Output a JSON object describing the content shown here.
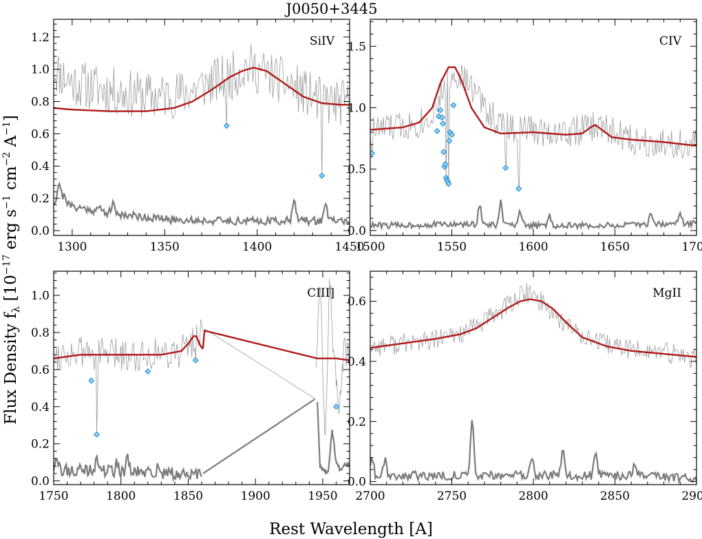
{
  "figure": {
    "title": "J0050+3445",
    "xlabel": "Rest Wavelength [A]",
    "ylabel": {
      "prefix": "Flux Density f",
      "sub": "λ",
      "unit_open": " [10",
      "exp": "−17",
      "units_a": " erg s",
      "exp_s": "−1",
      "units_b": " cm",
      "exp_cm": "−2",
      "units_c": " A",
      "exp_a": "−1",
      "close": "]"
    }
  },
  "colors": {
    "spectrum": "#9a9a9a",
    "error": "#7a7a7a",
    "model": "#b01818",
    "marker_stroke": "#1f8fd6",
    "marker_fill": "#9fd4f5"
  },
  "chart_data": [
    {
      "type": "line",
      "label": "SiIV",
      "xlim": [
        1290,
        1450
      ],
      "ylim": [
        -0.03,
        1.31
      ],
      "xticks": [
        1300,
        1350,
        1400,
        1450
      ],
      "xtick_labels": [
        "1300",
        "1350",
        "1400",
        "1450"
      ],
      "yticks": [
        0.0,
        0.2,
        0.4,
        0.6,
        0.8,
        1.0,
        1.2
      ],
      "ytick_labels": [
        "0.0",
        "0.2",
        "0.4",
        "0.6",
        "0.8",
        "1.0",
        "1.2"
      ],
      "model": {
        "x": [
          1290,
          1300,
          1320,
          1340,
          1355,
          1365,
          1375,
          1385,
          1392,
          1398,
          1405,
          1415,
          1425,
          1435,
          1445,
          1450
        ],
        "y": [
          0.76,
          0.75,
          0.74,
          0.74,
          0.76,
          0.8,
          0.87,
          0.95,
          0.99,
          1.01,
          0.99,
          0.91,
          0.83,
          0.79,
          0.78,
          0.78
        ]
      },
      "flux": {
        "x": [
          1290,
          1300,
          1315,
          1330,
          1345,
          1360,
          1375,
          1385,
          1395,
          1405,
          1415,
          1425,
          1435,
          1445,
          1450
        ],
        "y": [
          1.0,
          0.92,
          0.88,
          0.85,
          0.83,
          0.85,
          0.92,
          0.95,
          1.02,
          0.97,
          0.92,
          0.86,
          0.8,
          0.79,
          0.78
        ],
        "noise": 0.15,
        "seed": 11,
        "dips": [
          {
            "x": 1383.5,
            "y": 0.65
          },
          {
            "x": 1435,
            "y": 0.34
          }
        ]
      },
      "error": {
        "x": [
          1290,
          1300,
          1320,
          1350,
          1380,
          1410,
          1450
        ],
        "y": [
          0.18,
          0.15,
          0.11,
          0.07,
          0.06,
          0.06,
          0.06
        ],
        "noise": 0.025,
        "seed": 21,
        "bumps": [
          {
            "x": 1293,
            "y": 0.3
          },
          {
            "x": 1296,
            "y": 0.22
          },
          {
            "x": 1315,
            "y": 0.14
          },
          {
            "x": 1322,
            "y": 0.16
          },
          {
            "x": 1420,
            "y": 0.21
          },
          {
            "x": 1437,
            "y": 0.17
          }
        ]
      },
      "markers": {
        "x": [
          1383.5,
          1435
        ],
        "y": [
          0.65,
          0.34
        ]
      }
    },
    {
      "type": "line",
      "label": "CIV",
      "xlim": [
        1500,
        1700
      ],
      "ylim": [
        -0.04,
        1.72
      ],
      "xticks": [
        1500,
        1550,
        1600,
        1650,
        1700
      ],
      "xtick_labels": [
        "1500",
        "1550",
        "1600",
        "1650",
        "1700"
      ],
      "yticks": [
        0.0,
        0.5,
        1.0,
        1.5
      ],
      "ytick_labels": [
        "0.0",
        "0.5",
        "1.0",
        "1.5"
      ],
      "model": {
        "x": [
          1500,
          1520,
          1530,
          1538,
          1543,
          1548,
          1552,
          1556,
          1562,
          1570,
          1580,
          1600,
          1620,
          1630,
          1635,
          1638,
          1642,
          1648,
          1660,
          1680,
          1700
        ],
        "y": [
          0.82,
          0.84,
          0.88,
          1.0,
          1.2,
          1.33,
          1.33,
          1.22,
          1.0,
          0.84,
          0.79,
          0.8,
          0.78,
          0.79,
          0.84,
          0.86,
          0.82,
          0.76,
          0.74,
          0.72,
          0.69
        ]
      },
      "flux": {
        "x": [
          1500,
          1520,
          1535,
          1545,
          1552,
          1560,
          1568,
          1580,
          1600,
          1620,
          1640,
          1660,
          1680,
          1700
        ],
        "y": [
          0.82,
          0.85,
          0.9,
          1.15,
          1.3,
          1.2,
          1.05,
          0.85,
          0.82,
          0.8,
          0.85,
          0.74,
          0.72,
          0.69
        ],
        "noise": 0.13,
        "seed": 33,
        "dips": [
          {
            "x": 1501,
            "y": 0.63
          },
          {
            "x": 1546.5,
            "y": 0.4
          },
          {
            "x": 1548,
            "y": 0.38
          },
          {
            "x": 1583,
            "y": 0.51
          },
          {
            "x": 1591,
            "y": 0.34
          }
        ]
      },
      "error": {
        "x": [
          1500,
          1550,
          1600,
          1650,
          1700
        ],
        "y": [
          0.04,
          0.05,
          0.04,
          0.04,
          0.06
        ],
        "noise": 0.025,
        "seed": 44,
        "bumps": [
          {
            "x": 1567,
            "y": 0.22
          },
          {
            "x": 1580,
            "y": 0.23
          },
          {
            "x": 1592,
            "y": 0.15
          },
          {
            "x": 1610,
            "y": 0.12
          },
          {
            "x": 1672,
            "y": 0.16
          },
          {
            "x": 1690,
            "y": 0.14
          }
        ]
      },
      "markers": {
        "x": [
          1501,
          1541,
          1542,
          1543,
          1544,
          1544.5,
          1545,
          1545.5,
          1546,
          1546.5,
          1547,
          1547.5,
          1548,
          1548.5,
          1549,
          1550,
          1551,
          1583,
          1591
        ],
        "y": [
          0.63,
          0.81,
          0.93,
          0.98,
          0.92,
          0.87,
          0.64,
          0.52,
          0.54,
          0.43,
          0.41,
          0.4,
          0.38,
          0.73,
          0.8,
          0.78,
          1.02,
          0.51,
          0.34
        ]
      }
    },
    {
      "type": "line",
      "label": "CIII]",
      "xlim": [
        1750,
        1970
      ],
      "ylim": [
        -0.02,
        1.13
      ],
      "xticks": [
        1750,
        1800,
        1850,
        1900,
        1950
      ],
      "xtick_labels": [
        "1750",
        "1800",
        "1850",
        "1900",
        "1950"
      ],
      "yticks": [
        0.0,
        0.2,
        0.4,
        0.6,
        0.8,
        1.0
      ],
      "ytick_labels": [
        "0.0",
        "0.2",
        "0.4",
        "0.6",
        "0.8",
        "1.0"
      ],
      "model": {
        "x": [
          1750,
          1770,
          1790,
          1810,
          1830,
          1845,
          1850,
          1854,
          1856,
          1859,
          1861,
          1862,
          1946,
          1960,
          1970
        ],
        "y": [
          0.66,
          0.68,
          0.68,
          0.68,
          0.68,
          0.7,
          0.74,
          0.78,
          0.78,
          0.73,
          0.71,
          0.81,
          0.66,
          0.66,
          0.65
        ]
      },
      "flux": {
        "x": [
          1750,
          1770,
          1790,
          1810,
          1830,
          1845,
          1855,
          1861
        ],
        "y": [
          0.68,
          0.69,
          0.68,
          0.68,
          0.69,
          0.7,
          0.76,
          0.82
        ],
        "noise": 0.09,
        "seed": 55,
        "dips": [
          {
            "x": 1782,
            "y": 0.25
          },
          {
            "x": 1855.5,
            "y": 0.65
          }
        ]
      },
      "flux_gap_line": {
        "x": [
          1862,
          1945
        ],
        "y": [
          0.82,
          0.44
        ]
      },
      "flux_tail": {
        "x": [
          1945,
          1948,
          1952,
          1955,
          1958,
          1962,
          1966,
          1970
        ],
        "y": [
          0.65,
          1.05,
          0.2,
          1.13,
          0.7,
          0.4,
          0.7,
          0.65
        ],
        "noise": 0.08,
        "seed": 56,
        "dips": []
      },
      "error": {
        "x": [
          1750,
          1800,
          1860
        ],
        "y": [
          0.06,
          0.05,
          0.03
        ],
        "noise": 0.035,
        "seed": 66,
        "bumps": [
          {
            "x": 1752,
            "y": 0.16
          },
          {
            "x": 1782,
            "y": 0.15
          },
          {
            "x": 1797,
            "y": 0.11
          },
          {
            "x": 1805,
            "y": 0.13
          },
          {
            "x": 1828,
            "y": 0.1
          }
        ]
      },
      "error_gap_line": {
        "x": [
          1861,
          1944
        ],
        "y": [
          0.04,
          0.44
        ]
      },
      "error_tail": {
        "x": [
          1946,
          1948,
          1951,
          1954,
          1957,
          1960,
          1963,
          1966,
          1970
        ],
        "y": [
          0.43,
          0.08,
          0.06,
          0.04,
          0.28,
          0.1,
          0.06,
          0.09,
          0.09
        ],
        "noise": 0.01,
        "seed": 67,
        "bumps": []
      },
      "markers": {
        "x": [
          1778,
          1782,
          1820,
          1855.5,
          1960
        ],
        "y": [
          0.54,
          0.25,
          0.59,
          0.65,
          0.4
        ]
      }
    },
    {
      "type": "line",
      "label": "MgII",
      "xlim": [
        2700,
        2900
      ],
      "ylim": [
        -0.01,
        0.7
      ],
      "xticks": [
        2700,
        2750,
        2800,
        2850,
        2900
      ],
      "xtick_labels": [
        "2700",
        "2750",
        "2800",
        "2850",
        "2900"
      ],
      "yticks": [
        0.0,
        0.2,
        0.4,
        0.6
      ],
      "ytick_labels": [
        "0.0",
        "0.2",
        "0.4",
        "0.6"
      ],
      "model": {
        "x": [
          2700,
          2720,
          2740,
          2755,
          2765,
          2775,
          2785,
          2792,
          2798,
          2805,
          2812,
          2820,
          2830,
          2845,
          2860,
          2880,
          2900
        ],
        "y": [
          0.445,
          0.46,
          0.475,
          0.49,
          0.51,
          0.545,
          0.58,
          0.6,
          0.607,
          0.6,
          0.575,
          0.53,
          0.48,
          0.45,
          0.435,
          0.425,
          0.415
        ]
      },
      "flux": {
        "x": [
          2700,
          2720,
          2740,
          2760,
          2780,
          2795,
          2805,
          2820,
          2840,
          2860,
          2880,
          2900
        ],
        "y": [
          0.45,
          0.46,
          0.47,
          0.5,
          0.57,
          0.63,
          0.6,
          0.52,
          0.46,
          0.44,
          0.43,
          0.41
        ],
        "noise": 0.035,
        "seed": 77,
        "dips": []
      },
      "error": {
        "x": [
          2700,
          2750,
          2800,
          2850,
          2900
        ],
        "y": [
          0.02,
          0.02,
          0.02,
          0.02,
          0.01
        ],
        "noise": 0.015,
        "seed": 88,
        "bumps": [
          {
            "x": 2701,
            "y": 0.09
          },
          {
            "x": 2709,
            "y": 0.08
          },
          {
            "x": 2762.5,
            "y": 0.21
          },
          {
            "x": 2799,
            "y": 0.09
          },
          {
            "x": 2818,
            "y": 0.1
          },
          {
            "x": 2838,
            "y": 0.1
          },
          {
            "x": 2862,
            "y": 0.07
          }
        ]
      },
      "markers": {
        "x": [],
        "y": []
      }
    }
  ]
}
